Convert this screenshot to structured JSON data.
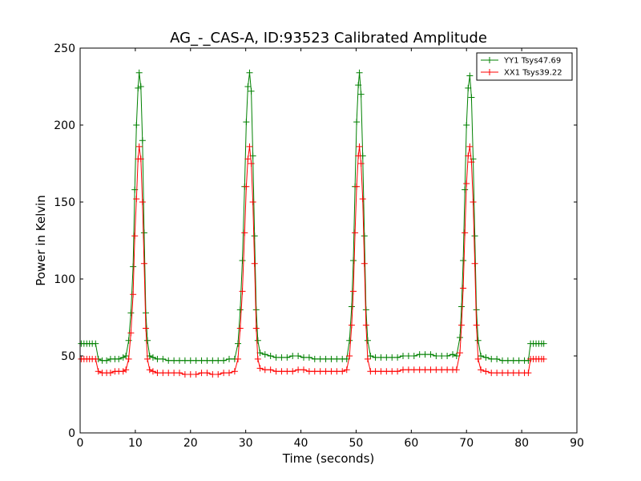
{
  "chart_data": {
    "type": "line",
    "title": "AG_-_CAS-A, ID:93523 Calibrated Amplitude",
    "xlabel": "Time (seconds)",
    "ylabel": "Power in Kelvin",
    "xlim": [
      0,
      90
    ],
    "ylim": [
      0,
      250
    ],
    "xticks": [
      0,
      10,
      20,
      30,
      40,
      50,
      60,
      70,
      80,
      90
    ],
    "yticks": [
      0,
      50,
      100,
      150,
      200,
      250
    ],
    "grid": false,
    "legend_position": "top-right",
    "marker": "plus",
    "series": [
      {
        "name": "YY1 Tsys47.69",
        "color": "#008000",
        "points": [
          [
            0.2,
            58
          ],
          [
            0.7,
            58
          ],
          [
            1.2,
            58
          ],
          [
            1.7,
            58
          ],
          [
            2.2,
            58
          ],
          [
            2.8,
            58
          ],
          [
            3.3,
            48
          ],
          [
            4.0,
            47
          ],
          [
            4.8,
            47
          ],
          [
            5.5,
            48
          ],
          [
            6.3,
            48
          ],
          [
            7.0,
            48
          ],
          [
            7.8,
            49
          ],
          [
            8.3,
            50
          ],
          [
            8.8,
            60
          ],
          [
            9.2,
            78
          ],
          [
            9.6,
            108
          ],
          [
            9.9,
            158
          ],
          [
            10.2,
            200
          ],
          [
            10.5,
            224
          ],
          [
            10.7,
            234
          ],
          [
            11.0,
            225
          ],
          [
            11.3,
            190
          ],
          [
            11.6,
            130
          ],
          [
            11.9,
            78
          ],
          [
            12.2,
            60
          ],
          [
            12.6,
            50
          ],
          [
            13.2,
            49
          ],
          [
            14.0,
            48
          ],
          [
            15.0,
            48
          ],
          [
            16.0,
            47
          ],
          [
            17.0,
            47
          ],
          [
            18.0,
            47
          ],
          [
            19.0,
            47
          ],
          [
            20.0,
            47
          ],
          [
            21.0,
            47
          ],
          [
            22.0,
            47
          ],
          [
            23.0,
            47
          ],
          [
            24.0,
            47
          ],
          [
            25.0,
            47
          ],
          [
            26.0,
            47
          ],
          [
            27.0,
            48
          ],
          [
            28.0,
            48
          ],
          [
            28.6,
            58
          ],
          [
            29.0,
            80
          ],
          [
            29.4,
            112
          ],
          [
            29.8,
            160
          ],
          [
            30.1,
            202
          ],
          [
            30.4,
            225
          ],
          [
            30.7,
            234
          ],
          [
            31.0,
            222
          ],
          [
            31.3,
            180
          ],
          [
            31.6,
            128
          ],
          [
            31.9,
            80
          ],
          [
            32.2,
            60
          ],
          [
            32.6,
            52
          ],
          [
            33.5,
            51
          ],
          [
            34.5,
            50
          ],
          [
            35.5,
            49
          ],
          [
            36.5,
            49
          ],
          [
            37.5,
            49
          ],
          [
            38.5,
            50
          ],
          [
            39.5,
            50
          ],
          [
            40.5,
            49
          ],
          [
            41.5,
            49
          ],
          [
            42.5,
            48
          ],
          [
            43.5,
            48
          ],
          [
            44.5,
            48
          ],
          [
            45.5,
            48
          ],
          [
            46.5,
            48
          ],
          [
            47.5,
            48
          ],
          [
            48.3,
            48
          ],
          [
            48.8,
            60
          ],
          [
            49.2,
            82
          ],
          [
            49.5,
            112
          ],
          [
            49.8,
            160
          ],
          [
            50.1,
            202
          ],
          [
            50.4,
            226
          ],
          [
            50.6,
            234
          ],
          [
            50.9,
            220
          ],
          [
            51.2,
            180
          ],
          [
            51.5,
            128
          ],
          [
            51.8,
            80
          ],
          [
            52.1,
            60
          ],
          [
            52.6,
            50
          ],
          [
            53.5,
            49
          ],
          [
            54.5,
            49
          ],
          [
            55.5,
            49
          ],
          [
            56.5,
            49
          ],
          [
            57.5,
            49
          ],
          [
            58.5,
            50
          ],
          [
            59.5,
            50
          ],
          [
            60.5,
            50
          ],
          [
            61.5,
            51
          ],
          [
            62.5,
            51
          ],
          [
            63.5,
            51
          ],
          [
            64.5,
            50
          ],
          [
            65.5,
            50
          ],
          [
            66.5,
            50
          ],
          [
            67.5,
            51
          ],
          [
            68.2,
            50
          ],
          [
            68.8,
            62
          ],
          [
            69.1,
            82
          ],
          [
            69.4,
            112
          ],
          [
            69.7,
            158
          ],
          [
            70.0,
            200
          ],
          [
            70.3,
            224
          ],
          [
            70.6,
            232
          ],
          [
            70.9,
            218
          ],
          [
            71.2,
            178
          ],
          [
            71.5,
            128
          ],
          [
            71.8,
            80
          ],
          [
            72.1,
            60
          ],
          [
            72.6,
            50
          ],
          [
            73.5,
            49
          ],
          [
            74.5,
            48
          ],
          [
            75.5,
            48
          ],
          [
            76.5,
            47
          ],
          [
            77.5,
            47
          ],
          [
            78.5,
            47
          ],
          [
            79.5,
            47
          ],
          [
            80.5,
            47
          ],
          [
            81.2,
            47
          ],
          [
            81.6,
            58
          ],
          [
            82.1,
            58
          ],
          [
            82.6,
            58
          ],
          [
            83.1,
            58
          ],
          [
            83.6,
            58
          ],
          [
            84.0,
            58
          ]
        ]
      },
      {
        "name": "XX1 Tsys39.22",
        "color": "#ff0000",
        "points": [
          [
            0.2,
            48
          ],
          [
            0.7,
            48
          ],
          [
            1.2,
            48
          ],
          [
            1.7,
            48
          ],
          [
            2.2,
            48
          ],
          [
            2.8,
            48
          ],
          [
            3.3,
            40
          ],
          [
            4.0,
            39
          ],
          [
            4.8,
            39
          ],
          [
            5.5,
            39
          ],
          [
            6.3,
            40
          ],
          [
            7.0,
            40
          ],
          [
            7.8,
            40
          ],
          [
            8.3,
            41
          ],
          [
            8.8,
            48
          ],
          [
            9.2,
            65
          ],
          [
            9.6,
            90
          ],
          [
            9.9,
            128
          ],
          [
            10.2,
            152
          ],
          [
            10.5,
            178
          ],
          [
            10.7,
            186
          ],
          [
            11.0,
            178
          ],
          [
            11.3,
            150
          ],
          [
            11.6,
            110
          ],
          [
            11.9,
            68
          ],
          [
            12.2,
            48
          ],
          [
            12.6,
            41
          ],
          [
            13.2,
            40
          ],
          [
            14.0,
            39
          ],
          [
            15.0,
            39
          ],
          [
            16.0,
            39
          ],
          [
            17.0,
            39
          ],
          [
            18.0,
            39
          ],
          [
            19.0,
            38
          ],
          [
            20.0,
            38
          ],
          [
            21.0,
            38
          ],
          [
            22.0,
            39
          ],
          [
            23.0,
            39
          ],
          [
            24.0,
            38
          ],
          [
            25.0,
            38
          ],
          [
            26.0,
            39
          ],
          [
            27.0,
            39
          ],
          [
            28.0,
            40
          ],
          [
            28.6,
            48
          ],
          [
            29.0,
            68
          ],
          [
            29.4,
            92
          ],
          [
            29.8,
            130
          ],
          [
            30.1,
            160
          ],
          [
            30.4,
            178
          ],
          [
            30.7,
            186
          ],
          [
            31.0,
            175
          ],
          [
            31.3,
            150
          ],
          [
            31.6,
            110
          ],
          [
            31.9,
            68
          ],
          [
            32.2,
            48
          ],
          [
            32.6,
            42
          ],
          [
            33.5,
            41
          ],
          [
            34.5,
            41
          ],
          [
            35.5,
            40
          ],
          [
            36.5,
            40
          ],
          [
            37.5,
            40
          ],
          [
            38.5,
            40
          ],
          [
            39.5,
            41
          ],
          [
            40.5,
            41
          ],
          [
            41.5,
            40
          ],
          [
            42.5,
            40
          ],
          [
            43.5,
            40
          ],
          [
            44.5,
            40
          ],
          [
            45.5,
            40
          ],
          [
            46.5,
            40
          ],
          [
            47.5,
            40
          ],
          [
            48.3,
            41
          ],
          [
            48.8,
            50
          ],
          [
            49.2,
            70
          ],
          [
            49.5,
            92
          ],
          [
            49.8,
            130
          ],
          [
            50.1,
            160
          ],
          [
            50.4,
            180
          ],
          [
            50.6,
            186
          ],
          [
            50.9,
            175
          ],
          [
            51.2,
            152
          ],
          [
            51.5,
            110
          ],
          [
            51.8,
            70
          ],
          [
            52.1,
            48
          ],
          [
            52.6,
            40
          ],
          [
            53.5,
            40
          ],
          [
            54.5,
            40
          ],
          [
            55.5,
            40
          ],
          [
            56.5,
            40
          ],
          [
            57.5,
            40
          ],
          [
            58.5,
            41
          ],
          [
            59.5,
            41
          ],
          [
            60.5,
            41
          ],
          [
            61.5,
            41
          ],
          [
            62.5,
            41
          ],
          [
            63.5,
            41
          ],
          [
            64.5,
            41
          ],
          [
            65.5,
            41
          ],
          [
            66.5,
            41
          ],
          [
            67.5,
            41
          ],
          [
            68.2,
            41
          ],
          [
            68.8,
            52
          ],
          [
            69.1,
            70
          ],
          [
            69.4,
            94
          ],
          [
            69.7,
            130
          ],
          [
            70.0,
            162
          ],
          [
            70.3,
            180
          ],
          [
            70.6,
            186
          ],
          [
            70.9,
            176
          ],
          [
            71.2,
            150
          ],
          [
            71.5,
            110
          ],
          [
            71.8,
            70
          ],
          [
            72.1,
            48
          ],
          [
            72.6,
            41
          ],
          [
            73.5,
            40
          ],
          [
            74.5,
            39
          ],
          [
            75.5,
            39
          ],
          [
            76.5,
            39
          ],
          [
            77.5,
            39
          ],
          [
            78.5,
            39
          ],
          [
            79.5,
            39
          ],
          [
            80.5,
            39
          ],
          [
            81.2,
            39
          ],
          [
            81.6,
            48
          ],
          [
            82.1,
            48
          ],
          [
            82.6,
            48
          ],
          [
            83.1,
            48
          ],
          [
            83.6,
            48
          ],
          [
            84.0,
            48
          ]
        ]
      }
    ]
  }
}
